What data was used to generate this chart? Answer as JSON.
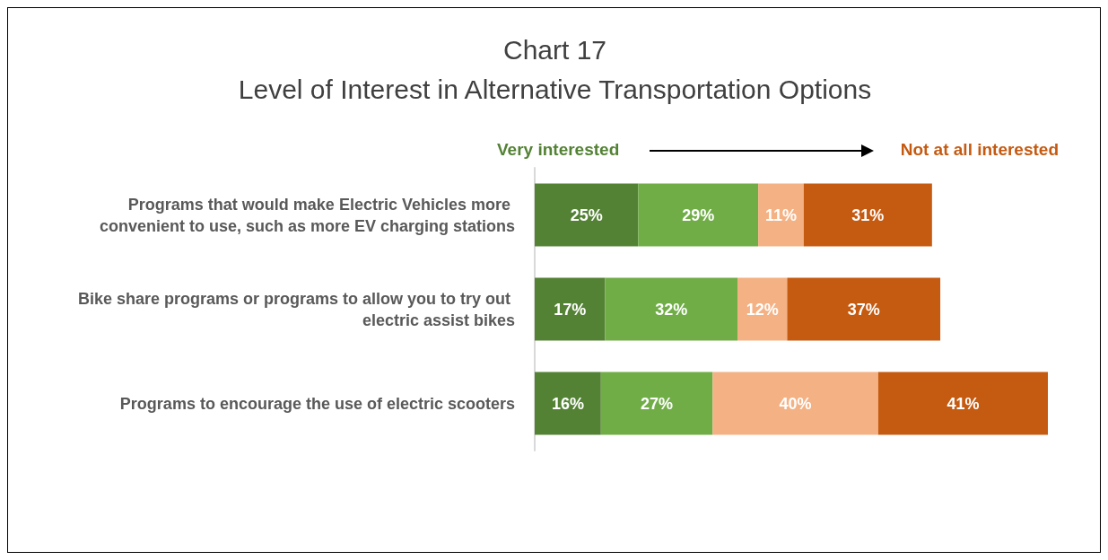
{
  "chart_data": {
    "type": "bar",
    "title": "Chart 17",
    "subtitle": "Level of Interest in Alternative Transportation Options",
    "orientation": "horizontal",
    "stacked": true,
    "categories": [
      "Programs that would make Electric Vehicles more convenient to use, such as more EV charging stations",
      "Bike share programs or programs to allow you to try out electric assist bikes",
      "Programs to encourage the use of electric scooters"
    ],
    "series": [
      {
        "color": "#548235",
        "values": [
          25,
          17,
          16
        ],
        "value_labels": [
          "25%",
          "17%",
          "16%"
        ]
      },
      {
        "color": "#70ad47",
        "values": [
          29,
          32,
          27
        ],
        "value_labels": [
          "29%",
          "32%",
          "27%"
        ]
      },
      {
        "color": "#f4b183",
        "values": [
          11,
          12,
          40
        ],
        "value_labels": [
          "11%",
          "12%",
          "40%"
        ]
      },
      {
        "color": "#c55a11",
        "values": [
          31,
          37,
          41
        ],
        "value_labels": [
          "31%",
          "37%",
          "41%"
        ]
      }
    ],
    "annotations": [
      "Very interested",
      "Not at all interested"
    ]
  }
}
